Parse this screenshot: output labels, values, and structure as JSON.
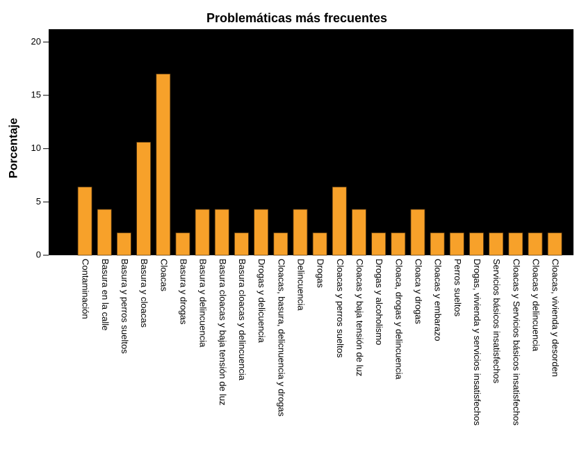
{
  "chart_data": {
    "type": "bar",
    "title": "Problemáticas más frecuentes",
    "y_label": "Porcentaje",
    "categories": [
      "Contaminación",
      "Basura en la calle",
      "Basura y perros sueltos",
      "Basura y cloacas",
      "Cloacas",
      "Basura y drogas",
      "Basura y delincuencia",
      "Basura cloacas y baja tensión de luz",
      "Basura cloacas y delincuencia",
      "Drogas y delicuencia",
      "Cloacas, basura, delicnuencia y drogas",
      "Delincuencia",
      "Drogas",
      "Cloacas y perros sueltos",
      "Cloacas y baja tensión de luz",
      "Drogas y alcoholismo",
      "Cloaca, drogas y delincuencia",
      "Cloaca y drogas",
      "Cloacas y embarazo",
      "Perros sueltos",
      "Drogas, vivienda y servicios insatisfechos",
      "Servicios básicos insatisfechos",
      "Cloacas y Servicios básicos insatisfechos",
      "Cloacas y delincuencia",
      "Cloacas, vivienda y desorden"
    ],
    "values": [
      6.4,
      4.3,
      2.1,
      10.6,
      17.0,
      2.1,
      4.3,
      4.3,
      2.1,
      4.3,
      2.1,
      4.3,
      2.1,
      6.4,
      4.3,
      2.1,
      2.1,
      4.3,
      2.1,
      2.1,
      2.1,
      2.1,
      2.1,
      2.1,
      2.1
    ],
    "color": "#f7a12a",
    "background": "#000000",
    "ylim": [
      0,
      21.2
    ],
    "yticks": [
      0,
      5,
      10,
      15,
      20
    ]
  }
}
